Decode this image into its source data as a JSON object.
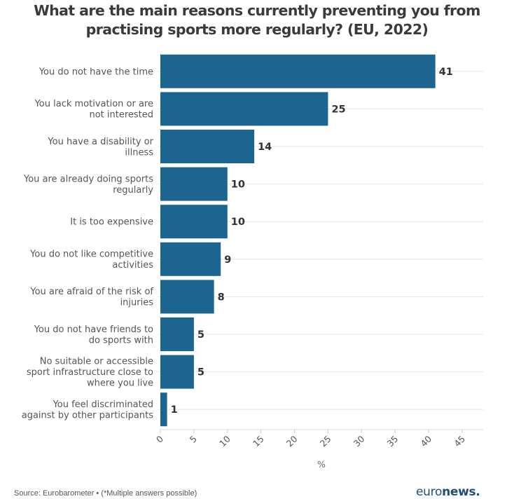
{
  "chart_data": {
    "type": "bar",
    "orientation": "horizontal",
    "title": "What are the main reasons currently preventing you from practising sports more regularly? (EU, 2022)",
    "title_lines": [
      "What are the main reasons currently preventing you from",
      "practising sports more regularly? (EU, 2022)"
    ],
    "categories": [
      "You do not have the time",
      "You lack motivation or are not interested",
      "You have a disability or illness",
      "You are already doing sports regularly",
      "It is too expensive",
      "You do not like competitive activities",
      "You are afraid of the risk of injuries",
      "You do not have friends to do sports with",
      "No suitable or accessible sport infrastructure close to where you live",
      "You feel discriminated against by other participants"
    ],
    "category_lines": [
      [
        "You do not have the time"
      ],
      [
        "You lack motivation or are",
        "not interested"
      ],
      [
        "You have a disability or",
        "illness"
      ],
      [
        "You are already doing sports",
        "regularly"
      ],
      [
        "It is too expensive"
      ],
      [
        "You do not like competitive",
        "activities"
      ],
      [
        "You are afraid of the risk of",
        "injuries"
      ],
      [
        "You do not have friends to",
        "do sports with"
      ],
      [
        "No suitable or accessible",
        "sport infrastructure close to",
        "where you live"
      ],
      [
        "You feel discriminated",
        "against by other participants"
      ]
    ],
    "values": [
      41,
      25,
      14,
      10,
      10,
      9,
      8,
      5,
      5,
      1
    ],
    "xlabel": "%",
    "ylabel": "",
    "xlim": [
      0,
      48
    ],
    "xticks": [
      0,
      5,
      10,
      15,
      20,
      25,
      30,
      35,
      40,
      45
    ],
    "grid": true,
    "bar_color": "#1c6591",
    "data_labels": true,
    "legend": "none"
  },
  "footer": {
    "source": "Source: Eurobarometer • (*Multiple answers possible)",
    "logo_light": "euro",
    "logo_bold": "news."
  }
}
